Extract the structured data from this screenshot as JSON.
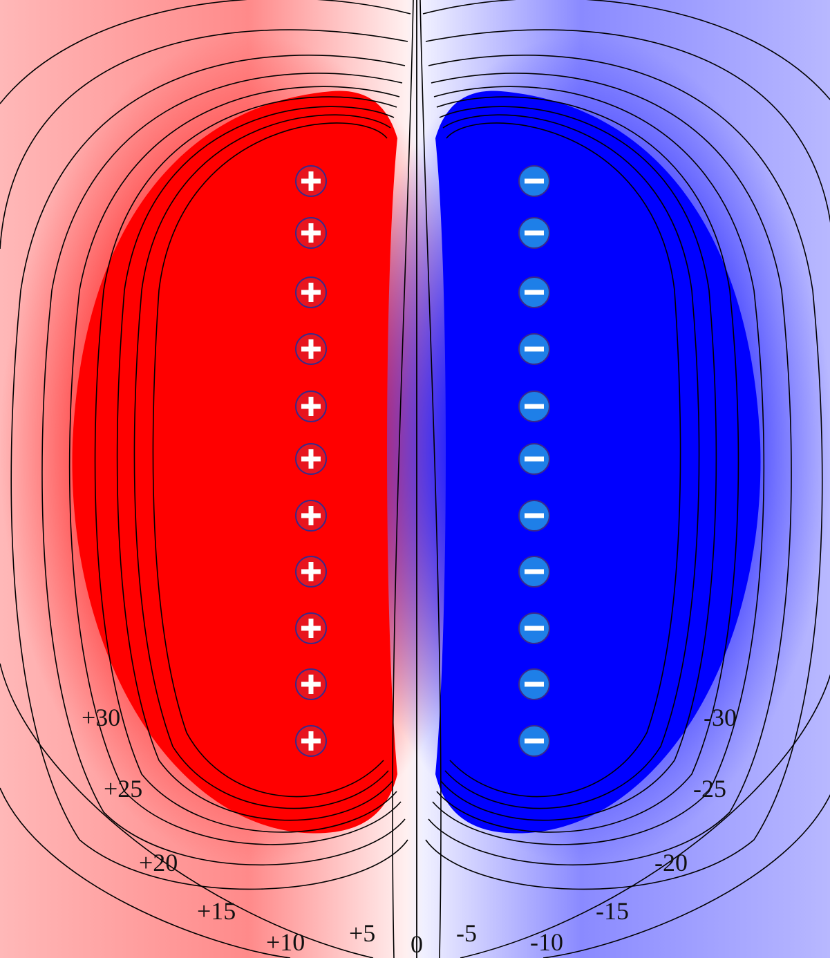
{
  "colors": {
    "positive_core": "#ff0000",
    "negative_core": "#0000ff",
    "positive_charge_fill": "#e8141e",
    "negative_charge_fill": "#1e7fe8",
    "contour": "#000000",
    "background": "#ffffff"
  },
  "charges": {
    "positive": {
      "symbol": "+",
      "icon": "plus-charge-icon",
      "count": 11
    },
    "negative": {
      "symbol": "−",
      "icon": "minus-charge-icon",
      "count": 11
    }
  },
  "contour_labels": {
    "positive": [
      "+30",
      "+25",
      "+20",
      "+15",
      "+10",
      "+5"
    ],
    "zero": "0",
    "negative": [
      "-5",
      "-10",
      "-15",
      "-20",
      "-25",
      "-30"
    ]
  }
}
